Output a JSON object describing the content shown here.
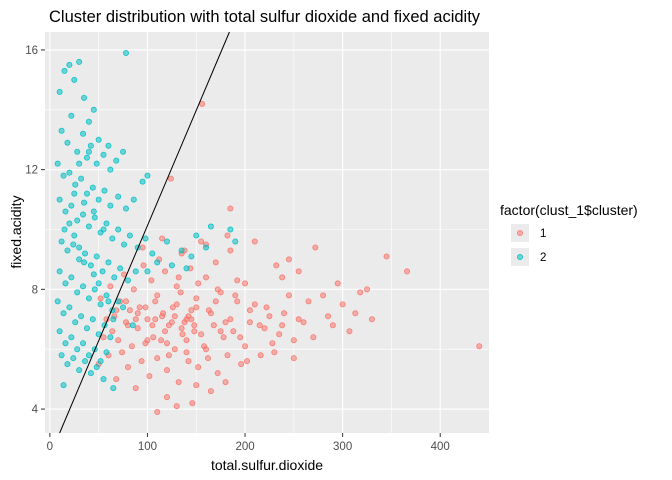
{
  "chart_data": {
    "type": "scatter",
    "title": "Cluster distribution with total sulfur dioxide and fixed acidity",
    "xlabel": "total.sulfur.dioxide",
    "ylabel": "fixed.acidity",
    "xlim": [
      -5,
      450
    ],
    "ylim": [
      3.2,
      16.6
    ],
    "x_ticks": [
      0,
      100,
      200,
      300,
      400
    ],
    "x_tick_labels": [
      "0",
      "100",
      "200",
      "300",
      "400"
    ],
    "y_ticks": [
      4,
      8,
      12,
      16
    ],
    "y_tick_labels": [
      "4",
      "8",
      "12",
      "16"
    ],
    "grid": true,
    "legend": {
      "title": "factor(clust_1$cluster)",
      "placement": "right",
      "entries": [
        "1",
        "2"
      ]
    },
    "colors": {
      "panel_background": "#ebebeb",
      "grid_major": "#ffffff",
      "cluster_1": "#f8766d",
      "cluster_2": "#00bfc4",
      "line": "#000000"
    },
    "line": {
      "x1": 10,
      "y1": 3.2,
      "x2": 184,
      "y2": 16.6
    },
    "series": [
      {
        "name": "1",
        "points": [
          [
            440,
            6.1
          ],
          [
            366,
            8.6
          ],
          [
            345,
            9.1
          ],
          [
            313,
            7.2
          ],
          [
            307,
            6.6
          ],
          [
            300,
            7.5
          ],
          [
            280,
            7.8
          ],
          [
            272,
            9.4
          ],
          [
            255,
            7.0
          ],
          [
            250,
            6.3
          ],
          [
            245,
            7.8
          ],
          [
            238,
            6.8
          ],
          [
            232,
            8.8
          ],
          [
            228,
            6.2
          ],
          [
            222,
            7.4
          ],
          [
            216,
            5.8
          ],
          [
            210,
            9.6
          ],
          [
            205,
            6.9
          ],
          [
            200,
            8.2
          ],
          [
            196,
            5.5
          ],
          [
            192,
            7.6
          ],
          [
            188,
            6.6
          ],
          [
            185,
            10.7
          ],
          [
            182,
            9.8
          ],
          [
            178,
            6.4
          ],
          [
            175,
            7.9
          ],
          [
            172,
            5.2
          ],
          [
            170,
            8.9
          ],
          [
            168,
            6.8
          ],
          [
            165,
            4.6
          ],
          [
            163,
            7.3
          ],
          [
            160,
            8.4
          ],
          [
            158,
            6.1
          ],
          [
            156,
            14.2
          ],
          [
            155,
            9.6
          ],
          [
            152,
            5.4
          ],
          [
            150,
            7.7
          ],
          [
            148,
            6.6
          ],
          [
            146,
            4.2
          ],
          [
            144,
            8.7
          ],
          [
            142,
            7.1
          ],
          [
            140,
            5.9
          ],
          [
            138,
            9.3
          ],
          [
            136,
            6.5
          ],
          [
            134,
            7.9
          ],
          [
            132,
            4.9
          ],
          [
            130,
            8.1
          ],
          [
            128,
            6.0
          ],
          [
            126,
            7.4
          ],
          [
            124,
            11.7
          ],
          [
            122,
            6.8
          ],
          [
            120,
            5.3
          ],
          [
            118,
            8.6
          ],
          [
            116,
            7.2
          ],
          [
            114,
            6.3
          ],
          [
            112,
            9.0
          ],
          [
            110,
            5.7
          ],
          [
            108,
            7.6
          ],
          [
            106,
            6.4
          ],
          [
            104,
            8.3
          ],
          [
            102,
            5.1
          ],
          [
            100,
            7.0
          ],
          [
            98,
            6.2
          ],
          [
            96,
            8.8
          ],
          [
            94,
            5.6
          ],
          [
            92,
            7.4
          ],
          [
            90,
            6.7
          ],
          [
            88,
            4.7
          ],
          [
            86,
            8.0
          ],
          [
            84,
            6.1
          ],
          [
            82,
            7.3
          ],
          [
            80,
            5.4
          ],
          [
            78,
            6.9
          ],
          [
            76,
            8.5
          ],
          [
            74,
            5.9
          ],
          [
            72,
            7.6
          ],
          [
            70,
            6.3
          ],
          [
            68,
            5.0
          ],
          [
            66,
            7.1
          ],
          [
            64,
            6.6
          ],
          [
            62,
            8.1
          ],
          [
            60,
            5.8
          ],
          [
            58,
            7.0
          ],
          [
            55,
            6.4
          ],
          [
            52,
            7.7
          ],
          [
            50,
            5.5
          ],
          [
            125,
            6.9
          ],
          [
            135,
            6.7
          ],
          [
            145,
            7.0
          ],
          [
            115,
            7.1
          ],
          [
            105,
            6.8
          ],
          [
            155,
            6.5
          ],
          [
            165,
            7.2
          ],
          [
            175,
            6.6
          ],
          [
            185,
            7.0
          ],
          [
            195,
            6.4
          ],
          [
            205,
            7.3
          ],
          [
            215,
            6.8
          ],
          [
            225,
            7.1
          ],
          [
            235,
            6.5
          ],
          [
            120,
            6.2
          ],
          [
            130,
            7.5
          ],
          [
            140,
            6.3
          ],
          [
            150,
            7.4
          ],
          [
            160,
            6.0
          ],
          [
            170,
            7.6
          ],
          [
            180,
            6.9
          ],
          [
            190,
            7.8
          ],
          [
            200,
            6.1
          ],
          [
            210,
            7.5
          ],
          [
            220,
            6.7
          ],
          [
            230,
            5.9
          ],
          [
            240,
            7.2
          ],
          [
            110,
            7.8
          ],
          [
            100,
            6.3
          ],
          [
            90,
            7.2
          ],
          [
            80,
            6.8
          ],
          [
            122,
            5.8
          ],
          [
            142,
            5.6
          ],
          [
            162,
            5.7
          ],
          [
            182,
            5.8
          ],
          [
            202,
            5.6
          ],
          [
            132,
            8.4
          ],
          [
            152,
            8.2
          ],
          [
            172,
            8.0
          ],
          [
            192,
            8.3
          ],
          [
            95,
            9.4
          ],
          [
            115,
            9.7
          ],
          [
            135,
            9.2
          ],
          [
            160,
            9.5
          ],
          [
            185,
            9.3
          ],
          [
            120,
            4.4
          ],
          [
            150,
            4.8
          ],
          [
            180,
            4.9
          ],
          [
            110,
            3.9
          ],
          [
            130,
            4.1
          ],
          [
            260,
            6.9
          ],
          [
            265,
            7.6
          ],
          [
            270,
            6.4
          ],
          [
            285,
            7.1
          ],
          [
            290,
            6.8
          ],
          [
            295,
            8.2
          ],
          [
            318,
            7.9
          ],
          [
            325,
            8.0
          ],
          [
            330,
            7.0
          ],
          [
            245,
            9.0
          ],
          [
            238,
            8.4
          ],
          [
            250,
            5.7
          ],
          [
            255,
            8.6
          ],
          [
            140,
            7.0
          ],
          [
            145,
            7.3
          ],
          [
            128,
            7.1
          ],
          [
            118,
            6.6
          ],
          [
            108,
            7.0
          ],
          [
            98,
            7.4
          ],
          [
            88,
            7.0
          ],
          [
            78,
            7.6
          ],
          [
            68,
            7.3
          ],
          [
            138,
            6.9
          ],
          [
            148,
            6.8
          ]
        ]
      },
      {
        "name": "2",
        "points": [
          [
            10,
            14.6
          ],
          [
            15,
            15.3
          ],
          [
            20,
            15.5
          ],
          [
            25,
            15.0
          ],
          [
            30,
            15.6
          ],
          [
            35,
            14.4
          ],
          [
            40,
            13.6
          ],
          [
            45,
            14.0
          ],
          [
            78,
            15.9
          ],
          [
            12,
            13.3
          ],
          [
            18,
            12.9
          ],
          [
            22,
            13.8
          ],
          [
            28,
            12.6
          ],
          [
            34,
            13.2
          ],
          [
            38,
            12.4
          ],
          [
            42,
            12.8
          ],
          [
            48,
            12.2
          ],
          [
            55,
            12.5
          ],
          [
            62,
            12.0
          ],
          [
            68,
            12.3
          ],
          [
            75,
            12.6
          ],
          [
            8,
            12.2
          ],
          [
            14,
            11.8
          ],
          [
            20,
            11.9
          ],
          [
            26,
            11.5
          ],
          [
            32,
            11.7
          ],
          [
            38,
            11.2
          ],
          [
            44,
            11.4
          ],
          [
            50,
            11.0
          ],
          [
            56,
            11.3
          ],
          [
            62,
            10.8
          ],
          [
            70,
            11.1
          ],
          [
            78,
            10.7
          ],
          [
            86,
            11.0
          ],
          [
            95,
            11.6
          ],
          [
            100,
            11.8
          ],
          [
            10,
            11.0
          ],
          [
            16,
            10.6
          ],
          [
            22,
            10.8
          ],
          [
            28,
            10.3
          ],
          [
            34,
            10.5
          ],
          [
            40,
            10.1
          ],
          [
            46,
            10.4
          ],
          [
            52,
            9.9
          ],
          [
            58,
            10.2
          ],
          [
            64,
            9.7
          ],
          [
            70,
            10.0
          ],
          [
            76,
            9.5
          ],
          [
            82,
            9.8
          ],
          [
            90,
            9.4
          ],
          [
            98,
            9.7
          ],
          [
            105,
            9.2
          ],
          [
            12,
            9.6
          ],
          [
            18,
            9.3
          ],
          [
            24,
            9.5
          ],
          [
            30,
            9.0
          ],
          [
            36,
            9.2
          ],
          [
            42,
            8.8
          ],
          [
            48,
            9.1
          ],
          [
            54,
            8.6
          ],
          [
            60,
            8.9
          ],
          [
            66,
            8.4
          ],
          [
            72,
            8.7
          ],
          [
            80,
            8.3
          ],
          [
            88,
            8.6
          ],
          [
            10,
            8.6
          ],
          [
            16,
            8.2
          ],
          [
            22,
            8.4
          ],
          [
            28,
            7.9
          ],
          [
            34,
            8.1
          ],
          [
            40,
            7.7
          ],
          [
            46,
            8.0
          ],
          [
            52,
            7.5
          ],
          [
            58,
            7.8
          ],
          [
            64,
            7.3
          ],
          [
            70,
            7.6
          ],
          [
            8,
            7.6
          ],
          [
            14,
            7.2
          ],
          [
            20,
            7.4
          ],
          [
            26,
            6.9
          ],
          [
            32,
            7.1
          ],
          [
            38,
            6.7
          ],
          [
            44,
            7.0
          ],
          [
            50,
            6.5
          ],
          [
            56,
            6.8
          ],
          [
            62,
            6.4
          ],
          [
            10,
            6.6
          ],
          [
            16,
            6.2
          ],
          [
            22,
            6.4
          ],
          [
            28,
            6.0
          ],
          [
            34,
            6.2
          ],
          [
            40,
            5.8
          ],
          [
            46,
            6.0
          ],
          [
            52,
            5.6
          ],
          [
            58,
            5.9
          ],
          [
            12,
            5.8
          ],
          [
            18,
            5.5
          ],
          [
            24,
            5.7
          ],
          [
            30,
            5.3
          ],
          [
            36,
            5.6
          ],
          [
            42,
            5.2
          ],
          [
            48,
            5.4
          ],
          [
            55,
            5.0
          ],
          [
            65,
            4.7
          ],
          [
            14,
            4.8
          ],
          [
            120,
            9.6
          ],
          [
            135,
            9.3
          ],
          [
            150,
            9.8
          ],
          [
            165,
            10.1
          ],
          [
            185,
            10.0
          ],
          [
            190,
            9.6
          ],
          [
            110,
            8.9
          ],
          [
            125,
            8.8
          ],
          [
            140,
            8.7
          ],
          [
            145,
            9.1
          ],
          [
            160,
            9.4
          ],
          [
            100,
            8.6
          ],
          [
            20,
            10.2
          ],
          [
            25,
            9.8
          ],
          [
            30,
            9.4
          ],
          [
            35,
            8.9
          ],
          [
            45,
            8.5
          ],
          [
            50,
            8.2
          ],
          [
            60,
            7.6
          ],
          [
            65,
            7.0
          ],
          [
            75,
            7.4
          ],
          [
            85,
            6.8
          ],
          [
            30,
            12.2
          ],
          [
            50,
            13.0
          ],
          [
            60,
            12.8
          ],
          [
            40,
            12.6
          ],
          [
            15,
            10.0
          ],
          [
            25,
            11.2
          ],
          [
            35,
            10.9
          ],
          [
            45,
            10.6
          ],
          [
            55,
            10.0
          ]
        ]
      }
    ]
  }
}
